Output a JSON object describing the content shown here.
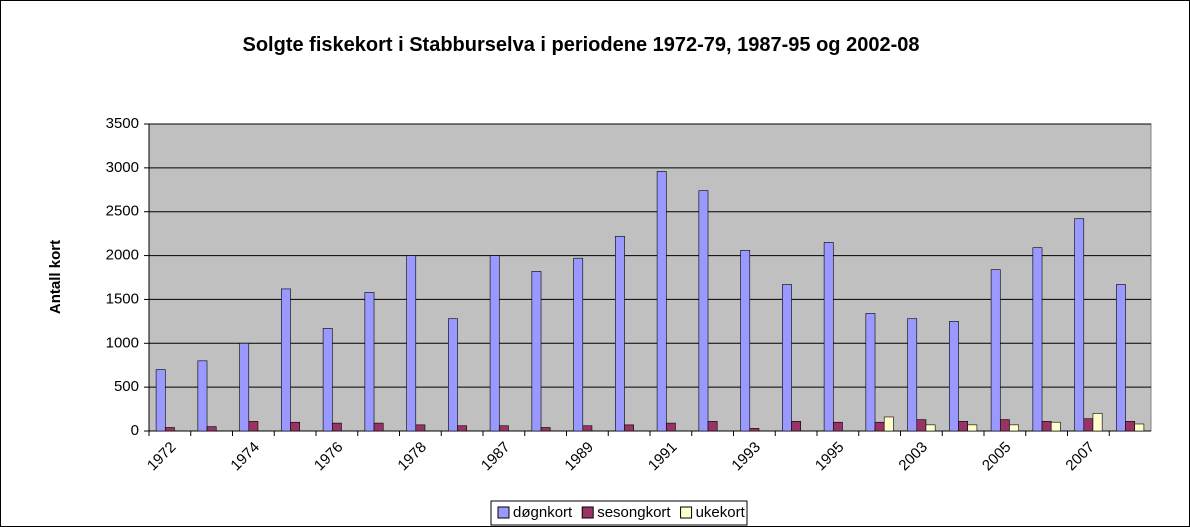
{
  "chart_data": {
    "type": "bar",
    "title": "Solgte fiskekort i Stabburselva i periodene 1972-79, 1987-95 og 2002-08",
    "y_label": "Antall kort",
    "categories": [
      "1972",
      null,
      "1974",
      null,
      "1976",
      null,
      "1978",
      null,
      "1987",
      null,
      "1989",
      null,
      "1991",
      null,
      "1993",
      null,
      "1995",
      null,
      "2003",
      null,
      "2005",
      null,
      "2007",
      null
    ],
    "series": [
      {
        "name": "døgnkort",
        "color": "#9999ff",
        "values": [
          700,
          800,
          1000,
          1620,
          1170,
          1580,
          2000,
          1280,
          2000,
          1820,
          1970,
          2220,
          2960,
          2740,
          2060,
          1670,
          2150,
          1340,
          1280,
          1250,
          1840,
          2090,
          2420,
          1670
        ]
      },
      {
        "name": "sesongkort",
        "color": "#993366",
        "values": [
          40,
          50,
          110,
          100,
          90,
          90,
          70,
          60,
          60,
          40,
          60,
          70,
          90,
          110,
          30,
          110,
          100,
          100,
          130,
          110,
          130,
          110,
          140,
          110
        ]
      },
      {
        "name": "ukekort",
        "color": "#ffffcc",
        "values": [
          null,
          null,
          null,
          null,
          null,
          null,
          null,
          null,
          null,
          null,
          null,
          null,
          null,
          null,
          null,
          null,
          null,
          160,
          70,
          70,
          70,
          100,
          200,
          80
        ]
      }
    ],
    "ylim": [
      0,
      3500
    ],
    "yticks": [
      0,
      500,
      1000,
      1500,
      2000,
      2500,
      3000,
      3500
    ],
    "grid": true,
    "legend": "bottom"
  }
}
